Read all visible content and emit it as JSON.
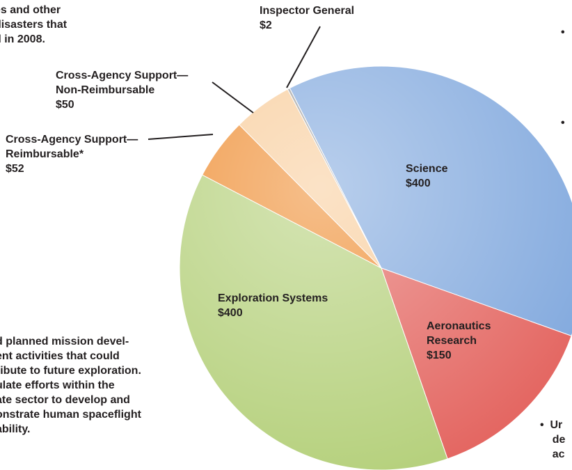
{
  "chart_data": {
    "type": "pie",
    "categories": [
      "Science",
      "Aeronautics\nResearch",
      "Exploration Systems",
      "Cross-Agency Support—\nReimbursable*",
      "Cross-Agency Support—\nNon-Reimbursable",
      "Inspector General"
    ],
    "values": [
      400,
      150,
      400,
      52,
      50,
      2
    ],
    "value_labels": [
      "$400",
      "$150",
      "$400",
      "$52",
      "$50",
      "$2"
    ],
    "colors": [
      "#7fa7dd",
      "#e3625d",
      "#b3cf78",
      "#ee8a2c",
      "#f8cb98",
      "#9a9a9a"
    ],
    "annotations": [
      "es and other\ndisasters that\nd in 2008.",
      "d planned mission devel-\nent activities that could\nribute to future exploration.\nulate efforts within the\nate sector to develop and\nonstrate human spaceflight\nability.",
      "•",
      "•",
      "•  Ur\n    de\n    ac"
    ]
  }
}
